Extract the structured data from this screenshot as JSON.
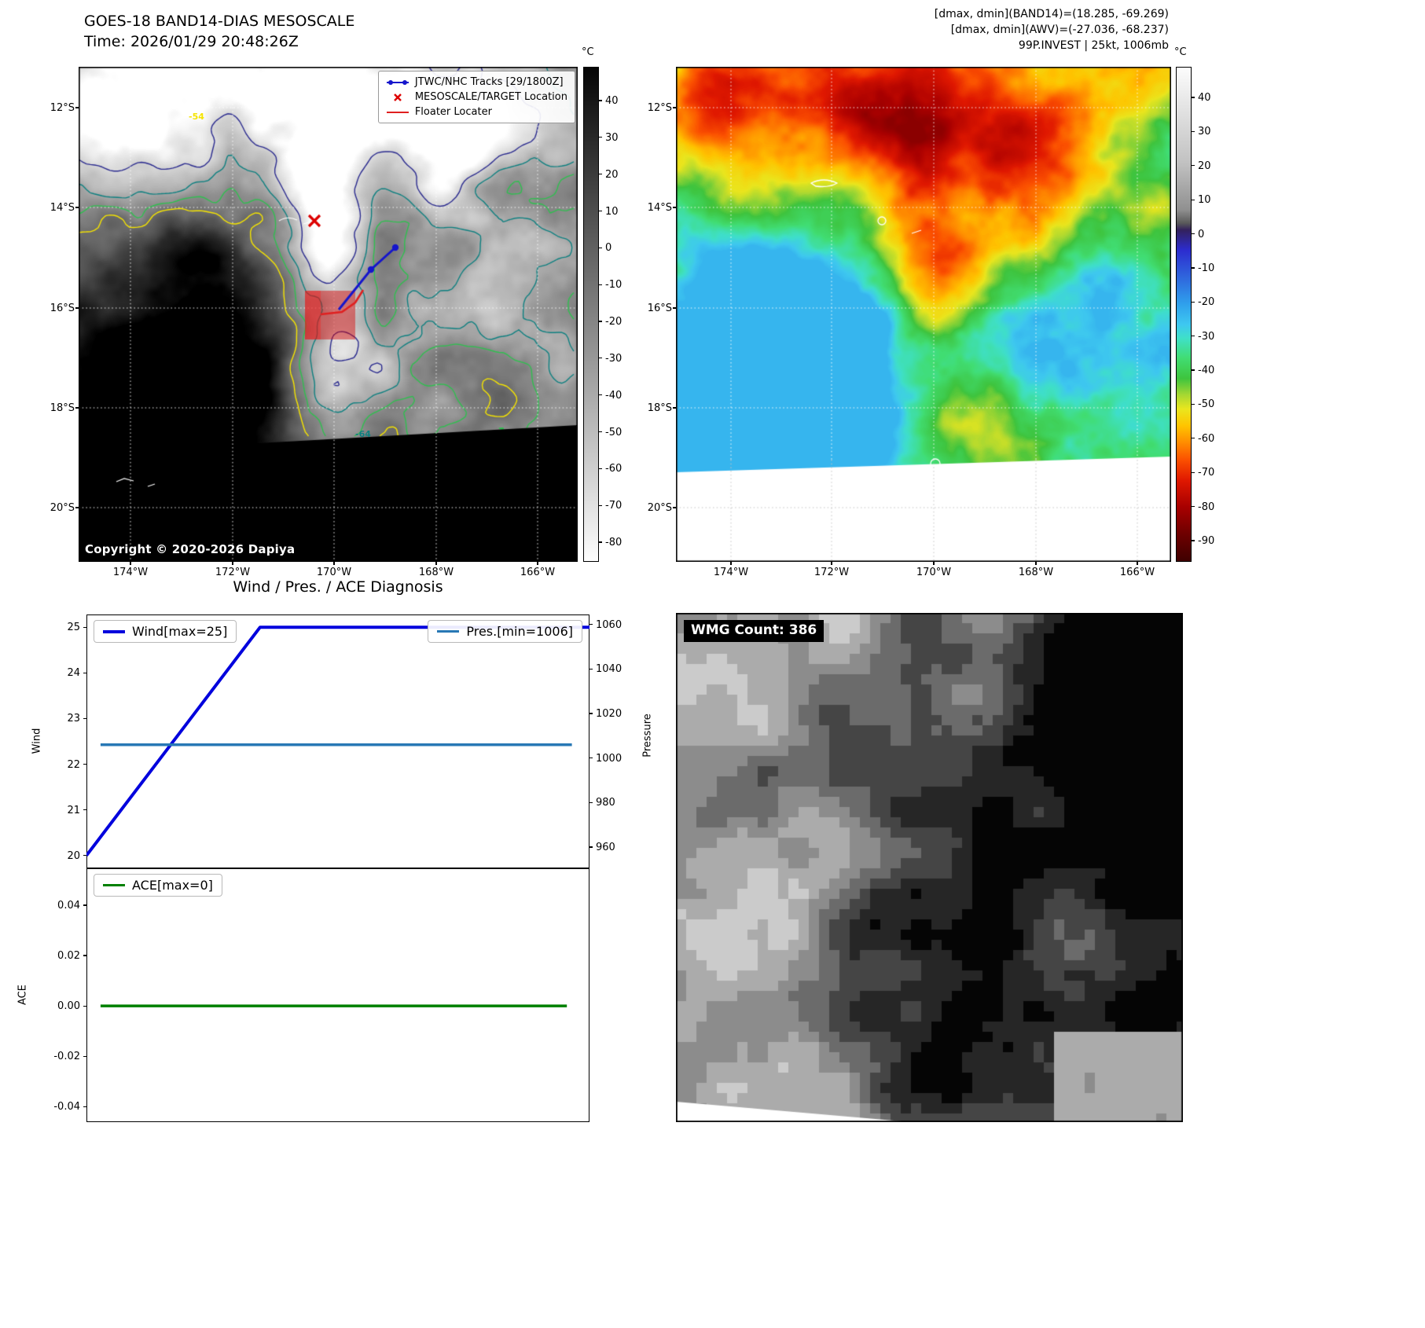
{
  "colors": {
    "wind_line": "#0000dd",
    "pres_line": "#2878b5",
    "ace_line": "#008000",
    "track_line": "#1515cc",
    "target_marker": "#dd0000",
    "floater_line": "#e02020",
    "target_box_fill": "rgba(215,0,0,0.45)",
    "contour_yellow": "#f5e400",
    "contour_green": "#2fbf4f",
    "contour_teal": "#0e8080",
    "contour_navy": "#2b2b8f"
  },
  "panel_tl": {
    "title_line1": "GOES-18 BAND14-DIAS MESOSCALE",
    "title_line2": "Time: 2026/01/29 20:48:26Z",
    "legend": {
      "track_label": "JTWC/NHC Tracks [29/1800Z]",
      "target_label": "MESOSCALE/TARGET Location",
      "floater_label": "Floater Locater"
    },
    "copyright": "Copyright © 2020-2026 Dapiya",
    "colorbar_unit": "°C",
    "colorbar_ticks": [
      "40",
      "30",
      "20",
      "10",
      "0",
      "-10",
      "-20",
      "-30",
      "-40",
      "-50",
      "-60",
      "-70",
      "-80"
    ],
    "lat_ticks": [
      "12°S",
      "14°S",
      "16°S",
      "18°S",
      "20°S"
    ],
    "lon_ticks": [
      "174°W",
      "172°W",
      "170°W",
      "168°W",
      "166°W"
    ],
    "contour_labels": [
      "-54",
      "-64"
    ]
  },
  "panel_tr": {
    "header_lines": [
      "[dmax, dmin](BAND14)=(18.285, -69.269)",
      "[dmax, dmin](AWV)=(-27.036, -68.237)",
      "99P.INVEST | 25kt, 1006mb"
    ],
    "colorbar_unit": "°C",
    "colorbar_ticks": [
      "40",
      "30",
      "20",
      "10",
      "0",
      "-10",
      "-20",
      "-30",
      "-40",
      "-50",
      "-60",
      "-70",
      "-80",
      "-90"
    ],
    "lat_ticks": [
      "12°S",
      "14°S",
      "16°S",
      "18°S",
      "20°S"
    ],
    "lon_ticks": [
      "174°W",
      "172°W",
      "170°W",
      "168°W",
      "166°W"
    ],
    "palette": [
      [
        48,
        "#fcfcfc"
      ],
      [
        20,
        "#c2c2c2"
      ],
      [
        6,
        "#909090"
      ],
      [
        2,
        "#5a5a5a"
      ],
      [
        0,
        "#33215c"
      ],
      [
        -6,
        "#2c2ccf"
      ],
      [
        -14,
        "#2f66dd"
      ],
      [
        -22,
        "#2fa0ec"
      ],
      [
        -28,
        "#3ec8f0"
      ],
      [
        -32,
        "#3fe0c8"
      ],
      [
        -38,
        "#41dd72"
      ],
      [
        -44,
        "#3ec43e"
      ],
      [
        -49,
        "#a8d832"
      ],
      [
        -53,
        "#eae61e"
      ],
      [
        -58,
        "#ffc400"
      ],
      [
        -63,
        "#ff8c00"
      ],
      [
        -68,
        "#fb5000"
      ],
      [
        -74,
        "#e01800"
      ],
      [
        -82,
        "#a80000"
      ],
      [
        -90,
        "#6e0000"
      ],
      [
        -98,
        "#3f0000"
      ]
    ]
  },
  "panel_wmg": {
    "label": "WMG Count: 386"
  },
  "charts_title": "Wind / Pres. / ACE Diagnosis",
  "chart_data": [
    {
      "type": "line",
      "title": "Wind / Pres. / ACE Diagnosis",
      "x_unit": "fraction_of_width",
      "series": [
        {
          "name": "Wind[max=25]",
          "color": "#0000dd",
          "axis": "left",
          "linewidth": 4,
          "x": [
            0.0,
            0.345,
            1.0
          ],
          "y": [
            20,
            25,
            25
          ]
        },
        {
          "name": "Pres.[min=1006]",
          "color": "#2878b5",
          "axis": "right",
          "linewidth": 3.5,
          "x": [
            0.028,
            0.965
          ],
          "y": [
            1006,
            1006
          ]
        }
      ],
      "left_axis": {
        "label": "Wind",
        "ticks": [
          "25",
          "24",
          "23",
          "22",
          "21",
          "20"
        ],
        "range": [
          19.72,
          25.28
        ]
      },
      "right_axis": {
        "label": "Pressure",
        "ticks": [
          "1060",
          "1040",
          "1020",
          "1000",
          "980",
          "960"
        ],
        "range": [
          950.5,
          1064.5
        ]
      },
      "grid": false,
      "legend_positions": [
        "upper left",
        "upper right"
      ]
    },
    {
      "type": "line",
      "x_unit": "fraction_of_width",
      "series": [
        {
          "name": "ACE[max=0]",
          "color": "#008000",
          "axis": "left",
          "linewidth": 3.5,
          "x": [
            0.028,
            0.955
          ],
          "y": [
            0,
            0
          ]
        }
      ],
      "left_axis": {
        "label": "ACE",
        "ticks": [
          "0.04",
          "0.02",
          "0.00",
          "-0.02",
          "-0.04"
        ],
        "range": [
          -0.0462,
          0.0547
        ]
      },
      "grid": false,
      "legend_positions": [
        "upper left"
      ]
    }
  ]
}
